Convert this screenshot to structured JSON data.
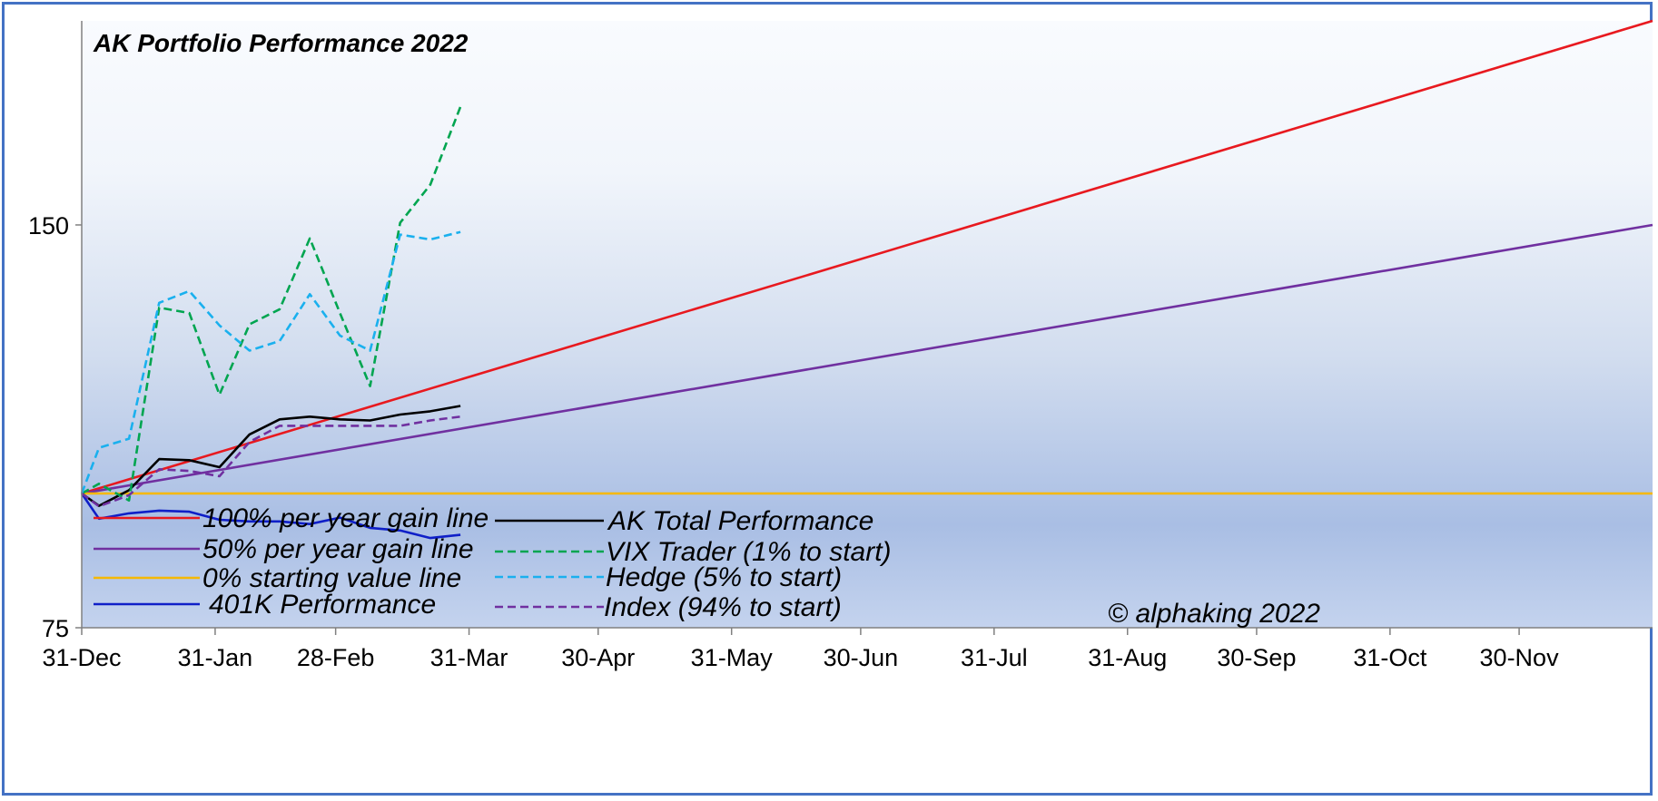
{
  "chart_data": {
    "type": "line",
    "title": "AK Portfolio Performance 2022",
    "copyright": "© alphaking 2022",
    "ylim": [
      75,
      188
    ],
    "y_ticks": [
      {
        "value": 75,
        "label": "75"
      },
      {
        "value": 150,
        "label": "150"
      }
    ],
    "xlim": [
      0,
      365
    ],
    "x_ticks": [
      {
        "day": 0,
        "label": "31-Dec"
      },
      {
        "day": 31,
        "label": "31-Jan"
      },
      {
        "day": 59,
        "label": "28-Feb"
      },
      {
        "day": 90,
        "label": "31-Mar"
      },
      {
        "day": 120,
        "label": "30-Apr"
      },
      {
        "day": 151,
        "label": "31-May"
      },
      {
        "day": 181,
        "label": "30-Jun"
      },
      {
        "day": 212,
        "label": "31-Jul"
      },
      {
        "day": 243,
        "label": "31-Aug"
      },
      {
        "day": 273,
        "label": "30-Sep"
      },
      {
        "day": 304,
        "label": "31-Oct"
      },
      {
        "day": 334,
        "label": "30-Nov"
      }
    ],
    "grid": false,
    "legend_position": "bottom-left",
    "series": [
      {
        "name": "100% per year gain line",
        "color": "#e8191f",
        "dash": false,
        "x": [
          0,
          365
        ],
        "y": [
          100,
          200
        ]
      },
      {
        "name": "50% per year gain line",
        "color": "#7030a0",
        "dash": false,
        "x": [
          0,
          365
        ],
        "y": [
          100,
          150
        ]
      },
      {
        "name": "0% starting value line",
        "color": "#f5b800",
        "dash": false,
        "x": [
          0,
          365
        ],
        "y": [
          100,
          100
        ]
      },
      {
        "name": "401K Performance",
        "color": "#0f1fc8",
        "dash": false,
        "x": [
          0,
          4,
          11,
          18,
          25,
          32,
          39,
          46,
          53,
          60,
          67,
          74,
          81,
          88
        ],
        "y": [
          100,
          95.3,
          96.3,
          96.8,
          96.6,
          95.1,
          94.8,
          94.8,
          94.3,
          95.5,
          93.6,
          93.1,
          91.7,
          92.3
        ]
      },
      {
        "name": "AK Total Performance",
        "color": "#000000",
        "dash": false,
        "x": [
          0,
          4,
          11,
          18,
          25,
          32,
          39,
          46,
          53,
          60,
          67,
          74,
          81,
          88
        ],
        "y": [
          100,
          97.7,
          100.6,
          106.4,
          106.2,
          104.9,
          111,
          113.8,
          114.3,
          113.8,
          113.6,
          114.7,
          115.3,
          116.3
        ]
      },
      {
        "name": "VIX Trader (1% to start)",
        "color": "#00a550",
        "dash": true,
        "x": [
          0,
          4,
          11,
          18,
          25,
          32,
          39,
          46,
          53,
          60,
          67,
          74,
          81,
          88
        ],
        "y": [
          100,
          101.8,
          98.7,
          134.6,
          133.6,
          118.4,
          131.5,
          134.3,
          147.5,
          133.6,
          120,
          150.4,
          157.5,
          172
        ]
      },
      {
        "name": "Hedge (5% to start)",
        "color": "#1ab0ee",
        "dash": true,
        "x": [
          0,
          4,
          11,
          18,
          25,
          32,
          39,
          46,
          53,
          60,
          67,
          74,
          81,
          88
        ],
        "y": [
          100,
          108.5,
          110.2,
          135.5,
          137.7,
          131.3,
          126.6,
          128.4,
          137.1,
          129.4,
          126.6,
          148.2,
          147.3,
          148.7
        ]
      },
      {
        "name": "Index  (94% to start)",
        "color": "#7030a0",
        "dash": true,
        "x": [
          0,
          4,
          11,
          18,
          25,
          32,
          39,
          46,
          53,
          60,
          67,
          74,
          81,
          88
        ],
        "y": [
          100,
          97.6,
          99.7,
          104.5,
          104.2,
          103.2,
          109.6,
          112.6,
          112.6,
          112.6,
          112.6,
          112.6,
          113.6,
          114.3
        ]
      }
    ]
  }
}
